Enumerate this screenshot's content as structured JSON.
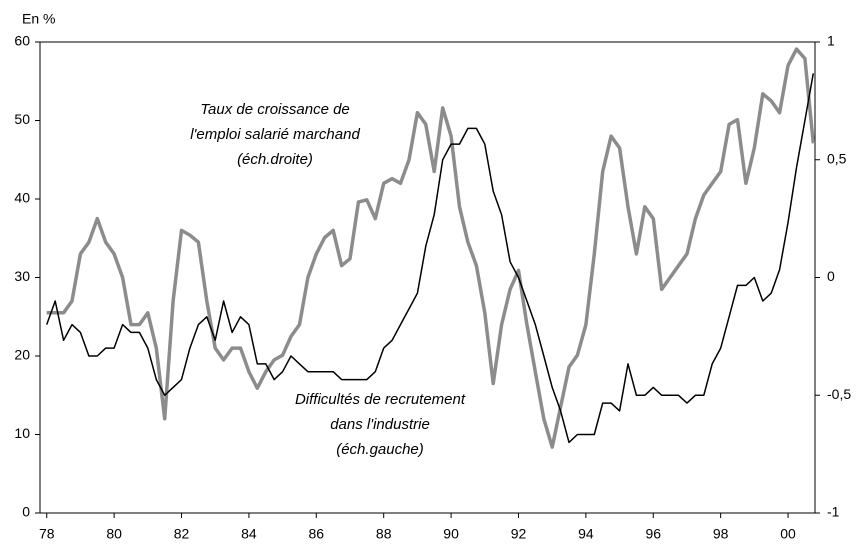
{
  "chart_data": {
    "type": "line",
    "y_unit_label": "En %",
    "x": [
      1978,
      1978.25,
      1978.5,
      1978.75,
      1979,
      1979.25,
      1979.5,
      1979.75,
      1980,
      1980.25,
      1980.5,
      1980.75,
      1981,
      1981.25,
      1981.5,
      1981.75,
      1982,
      1982.25,
      1982.5,
      1982.75,
      1983,
      1983.25,
      1983.5,
      1983.75,
      1984,
      1984.25,
      1984.5,
      1984.75,
      1985,
      1985.25,
      1985.5,
      1985.75,
      1986,
      1986.25,
      1986.5,
      1986.75,
      1987,
      1987.25,
      1987.5,
      1987.75,
      1988,
      1988.25,
      1988.5,
      1988.75,
      1989,
      1989.25,
      1989.5,
      1989.75,
      1990,
      1990.25,
      1990.5,
      1990.75,
      1991,
      1991.25,
      1991.5,
      1991.75,
      1992,
      1992.25,
      1992.5,
      1992.75,
      1993,
      1993.25,
      1993.5,
      1993.75,
      1994,
      1994.25,
      1994.5,
      1994.75,
      1995,
      1995.25,
      1995.5,
      1995.75,
      1996,
      1996.25,
      1996.5,
      1996.75,
      1997,
      1997.25,
      1997.5,
      1997.75,
      1998,
      1998.25,
      1998.5,
      1998.75,
      1999,
      1999.25,
      1999.5,
      1999.75,
      2000,
      2000.25,
      2000.5,
      2000.75
    ],
    "series": [
      {
        "color": "#000000",
        "values": [
          24,
          27,
          22,
          24,
          23,
          20,
          20,
          21,
          21,
          24,
          23,
          23,
          21,
          17,
          15,
          16,
          17,
          21,
          24,
          25,
          22,
          27,
          23,
          25,
          24,
          19,
          19,
          17,
          18,
          20,
          19,
          18,
          18,
          18,
          18,
          17,
          17,
          17,
          17,
          18,
          21,
          22,
          24,
          26,
          28,
          34,
          38,
          45,
          47,
          47,
          49,
          49,
          47,
          41,
          38,
          32,
          30,
          27,
          24,
          20,
          16,
          13,
          9,
          10,
          10,
          10,
          14,
          14,
          13,
          19,
          15,
          15,
          16,
          15,
          15,
          15,
          14,
          15,
          15,
          19,
          21,
          25,
          29,
          29,
          30,
          27,
          28,
          31,
          37,
          44,
          50,
          56
        ]
      },
      {
        "color": "#8c8c8c",
        "axis": "y2",
        "values": [
          -0.15,
          -0.15,
          -0.15,
          -0.1,
          0.1,
          0.15,
          0.25,
          0.15,
          0.1,
          0,
          -0.2,
          -0.2,
          -0.15,
          -0.3,
          -0.6,
          -0.1,
          0.2,
          0.18,
          0.15,
          -0.1,
          -0.3,
          -0.35,
          -0.3,
          -0.3,
          -0.4,
          -0.47,
          -0.4,
          -0.35,
          -0.33,
          -0.25,
          -0.2,
          0,
          0.1,
          0.17,
          0.2,
          0.05,
          0.08,
          0.32,
          0.33,
          0.25,
          0.4,
          0.42,
          0.4,
          0.5,
          0.7,
          0.65,
          0.45,
          0.72,
          0.6,
          0.3,
          0.15,
          0.05,
          -0.15,
          -0.45,
          -0.2,
          -0.05,
          0.03,
          -0.2,
          -0.4,
          -0.6,
          -0.72,
          -0.55,
          -0.38,
          -0.33,
          -0.2,
          0.1,
          0.45,
          0.6,
          0.55,
          0.3,
          0.1,
          0.3,
          0.25,
          -0.05,
          0,
          0.05,
          0.1,
          0.25,
          0.35,
          0.4,
          0.45,
          0.65,
          0.67,
          0.4,
          0.55,
          0.78,
          0.75,
          0.7,
          0.9,
          0.97,
          0.93,
          0.57
        ]
      }
    ],
    "annotations": [
      {
        "lines": [
          "Taux de croissance de",
          "l'emploi salarié marchand",
          "(éch.droite)"
        ]
      },
      {
        "lines": [
          "Difficultés de recrutement",
          "dans l'industrie",
          "(éch.gauche)"
        ]
      }
    ],
    "xlim": [
      1977.8,
      2000.8
    ],
    "xticks": [
      {
        "value": 1978,
        "label": "78"
      },
      {
        "value": 1980,
        "label": "80"
      },
      {
        "value": 1982,
        "label": "82"
      },
      {
        "value": 1984,
        "label": "84"
      },
      {
        "value": 1986,
        "label": "86"
      },
      {
        "value": 1988,
        "label": "88"
      },
      {
        "value": 1990,
        "label": "90"
      },
      {
        "value": 1992,
        "label": "92"
      },
      {
        "value": 1994,
        "label": "94"
      },
      {
        "value": 1996,
        "label": "96"
      },
      {
        "value": 1998,
        "label": "98"
      },
      {
        "value": 2000,
        "label": "00"
      }
    ],
    "ylim": [
      0,
      60
    ],
    "yticks": [
      0,
      10,
      20,
      30,
      40,
      50,
      60
    ],
    "y2lim": [
      -1,
      1
    ],
    "y2ticks": [
      -1,
      {
        "value": -0.5,
        "label": "-0,5"
      },
      0,
      {
        "value": 0.5,
        "label": "0,5"
      },
      1
    ]
  }
}
